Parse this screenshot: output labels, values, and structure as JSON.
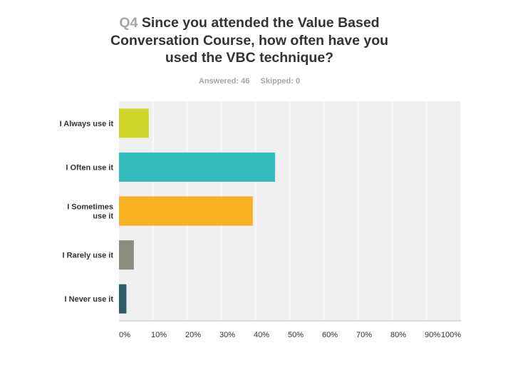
{
  "header": {
    "question_number": "Q4",
    "title_line1": "Since you attended the Value Based",
    "title_line2": "Conversation Course, how often have you",
    "title_line3": "used the VBC technique?",
    "answered": "Answered: 46",
    "skipped": "Skipped: 0"
  },
  "chart_data": {
    "type": "bar",
    "orientation": "horizontal",
    "title": "Since you attended the Value Based Conversation Course, how often have you used the VBC technique?",
    "categories": [
      [
        "I Always use it"
      ],
      [
        "I Often use it"
      ],
      [
        "I Sometimes",
        "use it"
      ],
      [
        "I Rarely use it"
      ],
      [
        "I Never use it"
      ]
    ],
    "values": [
      8.7,
      45.65,
      39.13,
      4.35,
      2.17
    ],
    "colors": [
      "#cdd629",
      "#33bdbe",
      "#f6b020",
      "#8c8c80",
      "#2d5f6b"
    ],
    "xlim": [
      0,
      100
    ],
    "ticks": [
      "0%",
      "10%",
      "20%",
      "30%",
      "40%",
      "50%",
      "60%",
      "70%",
      "80%",
      "90%",
      "100%"
    ],
    "grid": true,
    "background": "#f0f0f0",
    "gridline_color": "#ffffff"
  }
}
